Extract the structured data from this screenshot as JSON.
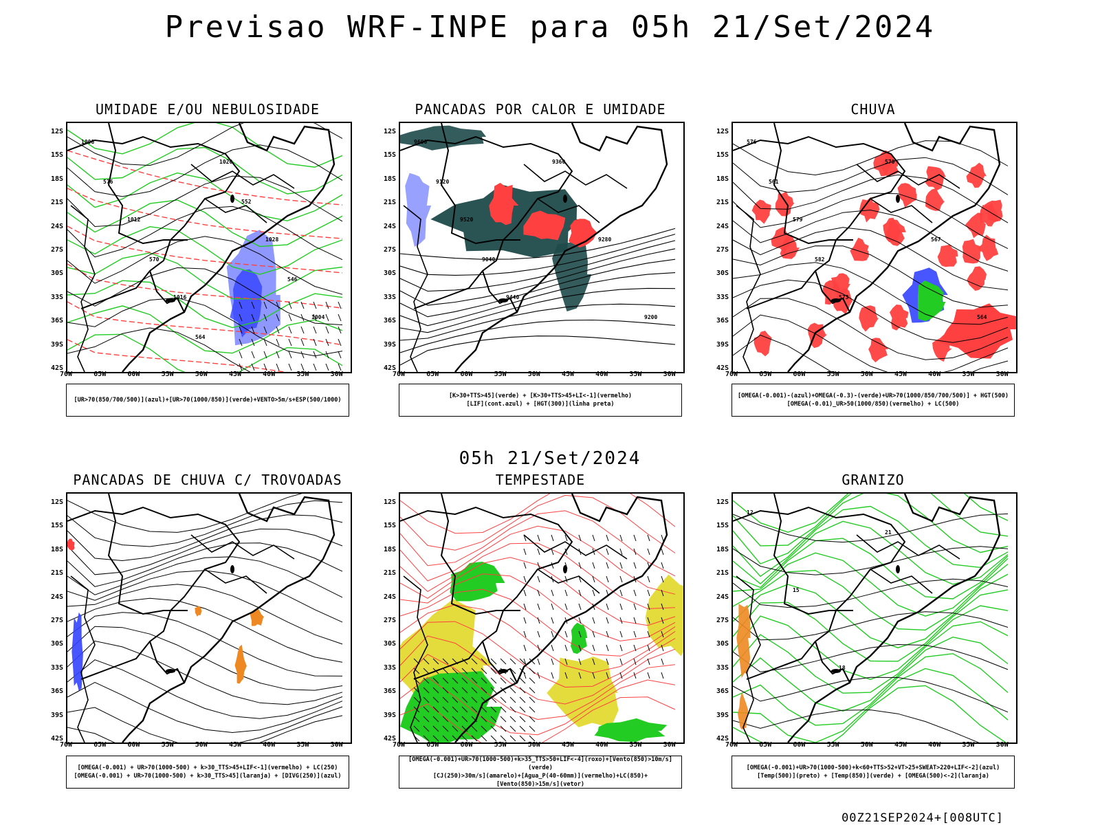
{
  "header": {
    "title": "Previsao WRF-INPE  para 05h 21/Set/2024",
    "middle_title": "05h 21/Set/2024",
    "footer": "00Z21SEP2024+[008UTC]"
  },
  "axes": {
    "latitudes": [
      "12S",
      "15S",
      "18S",
      "21S",
      "24S",
      "27S",
      "30S",
      "33S",
      "36S",
      "39S",
      "42S"
    ],
    "longitudes": [
      "70W",
      "65W",
      "60W",
      "55W",
      "50W",
      "45W",
      "40W",
      "35W",
      "30W"
    ]
  },
  "panels": [
    {
      "title": "UMIDADE E/OU NEBULOSIDADE",
      "legend": [
        "[UR>70(850/700/500)](azul)+[UR>70(1000/850)](verde)+VENTO>5m/s+ESP(500/1000)"
      ],
      "labels": [
        "1008",
        "1012",
        "1016",
        "1020",
        "1028",
        "1004",
        "576",
        "570",
        "564",
        "552",
        "546"
      ]
    },
    {
      "title": "PANCADAS POR CALOR E UMIDADE",
      "legend": [
        "[K>30+TTS>45](verde) + [K>30+TTS>45+LI<-1](vermelho)",
        "[LIF](cont.azul) + [HGT(300)](linha preta)"
      ],
      "labels": [
        "9600",
        "9520",
        "9440",
        "9360",
        "9280",
        "9200",
        "9120",
        "9040"
      ]
    },
    {
      "title": "CHUVA",
      "legend": [
        "[OMEGA(-0.001)-(azul)+OMEGA(-0.3)-(verde)+UR>70(1000/850/700/500)] + HGT(500)",
        "[OMEGA(-0.01)_UR>50(1000/850)(vermelho) + LC(500)"
      ],
      "labels": [
        "576",
        "579",
        "573",
        "570",
        "567",
        "564",
        "561",
        "582"
      ]
    },
    {
      "title": "PANCADAS DE CHUVA C/ TROVOADAS",
      "legend": [
        "[OMEGA(-0.001) + UR>70(1000-500) + k>30_TTS>45+LIF<-1](vermelho) + LC(250)",
        "[OMEGA(-0.001) + UR>70(1000-500) + k>30_TTS>45](laranja) + [DIVG(250)](azul)"
      ],
      "labels": []
    },
    {
      "title": "TEMPESTADE",
      "legend": [
        "[OMEGA(-0.001)+UR>70(1000-500)+k>35_TTS>50+LIF<-4](roxo)+[Vento(850)>10m/s](verde)",
        "[CJ(250)>30m/s](amarelo)+[Agua_P(40-60mm)](vermelho)+LC(850)+[Vento(850)>15m/s](vetor)"
      ],
      "labels": []
    },
    {
      "title": "GRANIZO",
      "legend": [
        "[OMEGA(-0.001)+UR>70(1000-500)+k<60+TTS>52+VT>25+SWEAT>220+LIF<-2](azul)",
        "[Temp(500)](preto) + [Temp(850)](verde) + [OMEGA(500)<-2](laranja)"
      ],
      "labels": [
        "12",
        "15",
        "18",
        "21"
      ]
    }
  ],
  "colors": {
    "green": "#22cc22",
    "red": "#ff4040",
    "blue": "#3344ff",
    "orange": "#ee8822",
    "yellow": "#e4dc3c",
    "darkteal": "#1f4a4a"
  }
}
